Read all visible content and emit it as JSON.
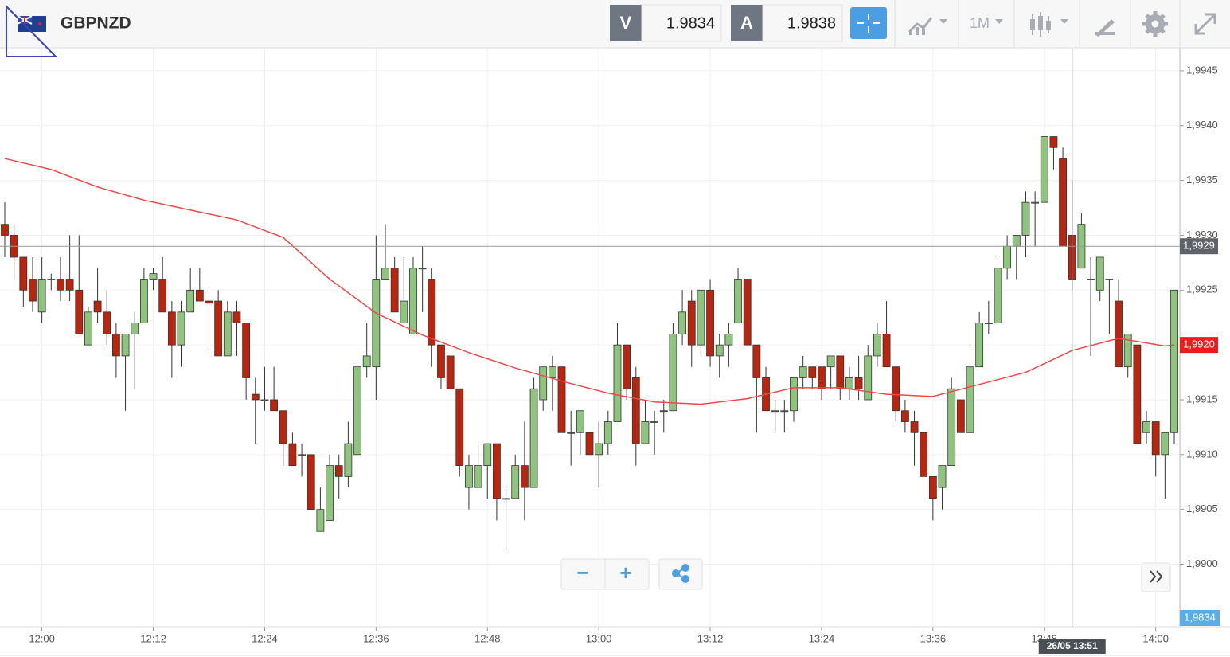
{
  "toolbar": {
    "symbol": "GBPNZD",
    "sell_label": "V",
    "sell_price": 1.9834,
    "buy_label": "A",
    "buy_price": 1.9838,
    "timeframe": "1M"
  },
  "controls": {
    "zoom_out": "−",
    "zoom_in": "+"
  },
  "chart_data": {
    "type": "candlestick",
    "x": [
      "11:56",
      "11:57",
      "11:58",
      "11:59",
      "12:00",
      "12:01",
      "12:02",
      "12:03",
      "12:04",
      "12:05",
      "12:06",
      "12:07",
      "12:08",
      "12:09",
      "12:10",
      "12:11",
      "12:12",
      "12:13",
      "12:14",
      "12:15",
      "12:16",
      "12:17",
      "12:18",
      "12:19",
      "12:20",
      "12:21",
      "12:22",
      "12:23",
      "12:24",
      "12:25",
      "12:26",
      "12:27",
      "12:28",
      "12:29",
      "12:30",
      "12:31",
      "12:32",
      "12:33",
      "12:34",
      "12:35",
      "12:36",
      "12:37",
      "12:38",
      "12:39",
      "12:40",
      "12:41",
      "12:42",
      "12:43",
      "12:44",
      "12:45",
      "12:46",
      "12:47",
      "12:48",
      "12:49",
      "12:50",
      "12:51",
      "12:52",
      "12:53",
      "12:54",
      "12:55",
      "12:56",
      "12:57",
      "12:58",
      "12:59",
      "13:00",
      "13:01",
      "13:02",
      "13:03",
      "13:04",
      "13:05",
      "13:06",
      "13:07",
      "13:08",
      "13:09",
      "13:10",
      "13:11",
      "13:12",
      "13:13",
      "13:14",
      "13:15",
      "13:16",
      "13:17",
      "13:18",
      "13:19",
      "13:20",
      "13:21",
      "13:22",
      "13:23",
      "13:24",
      "13:25",
      "13:26",
      "13:27",
      "13:28",
      "13:29",
      "13:30",
      "13:31",
      "13:32",
      "13:33",
      "13:34",
      "13:35",
      "13:36",
      "13:37",
      "13:38",
      "13:39",
      "13:40",
      "13:41",
      "13:42",
      "13:43",
      "13:44",
      "13:45",
      "13:46",
      "13:47",
      "13:48",
      "13:49",
      "13:50",
      "13:51",
      "13:52",
      "13:53",
      "13:54",
      "13:55",
      "13:56",
      "13:57",
      "13:58",
      "13:59",
      "14:00",
      "14:01",
      "14:02"
    ],
    "open": [
      1.9931,
      1.993,
      1.9928,
      1.9926,
      1.9923,
      1.9926,
      1.9926,
      1.9926,
      1.9925,
      1.992,
      1.9924,
      1.9923,
      1.9921,
      1.9919,
      1.9921,
      1.9922,
      1.9926,
      1.9926,
      1.9923,
      1.992,
      1.9923,
      1.9925,
      1.9924,
      1.9924,
      1.9919,
      1.9923,
      1.9922,
      1.99155,
      1.9915,
      1.9915,
      1.9914,
      1.9911,
      1.991,
      1.991,
      1.9903,
      1.9904,
      1.9909,
      1.9908,
      1.991,
      1.9918,
      1.9918,
      1.9926,
      1.9927,
      1.9922,
      1.9921,
      1.9927,
      1.9926,
      1.992,
      1.9919,
      1.9916,
      1.9907,
      1.9907,
      1.9909,
      1.9911,
      1.9906,
      1.9906,
      1.9909,
      1.9907,
      1.9915,
      1.9917,
      1.9918,
      1.9912,
      1.9912,
      1.9912,
      1.991,
      1.9911,
      1.9913,
      1.992,
      1.9917,
      1.9911,
      1.9913,
      1.9914,
      1.9914,
      1.9921,
      1.9924,
      1.992,
      1.9925,
      1.9919,
      1.992,
      1.9922,
      1.9926,
      1.992,
      1.9917,
      1.9914,
      1.9914,
      1.9914,
      1.9917,
      1.9918,
      1.9918,
      1.9918,
      1.9919,
      1.9916,
      1.9917,
      1.9915,
      1.9919,
      1.9921,
      1.9918,
      1.9914,
      1.9913,
      1.9912,
      1.9908,
      1.9907,
      1.9909,
      1.9915,
      1.9912,
      1.9918,
      1.9922,
      1.9922,
      1.9927,
      1.9929,
      1.993,
      1.9933,
      1.9933,
      1.9939,
      1.9937,
      1.993,
      1.9927,
      1.9926,
      1.9925,
      1.9926,
      1.9924,
      1.9918,
      1.992,
      1.9912,
      1.9913,
      1.991,
      1.9912
    ],
    "high": [
      1.9933,
      1.9931,
      1.9928,
      1.9928,
      1.9928,
      1.99265,
      1.9928,
      1.993,
      1.993,
      1.99235,
      1.9927,
      1.9925,
      1.9922,
      1.9921,
      1.9923,
      1.9927,
      1.9927,
      1.9928,
      1.9924,
      1.9924,
      1.9927,
      1.9927,
      1.9925,
      1.9925,
      1.9924,
      1.9924,
      1.9922,
      1.9917,
      1.9918,
      1.9918,
      1.9914,
      1.9912,
      1.9911,
      1.991,
      1.9907,
      1.991,
      1.991,
      1.9913,
      1.9918,
      1.9922,
      1.993,
      1.9931,
      1.9928,
      1.9928,
      1.9928,
      1.9929,
      1.9927,
      1.992,
      1.9919,
      1.9916,
      1.991,
      1.9911,
      1.9911,
      1.9911,
      1.9907,
      1.991,
      1.9913,
      1.9917,
      1.9918,
      1.9919,
      1.9918,
      1.9914,
      1.9914,
      1.9912,
      1.9913,
      1.9914,
      1.9922,
      1.992,
      1.9918,
      1.9915,
      1.9914,
      1.9915,
      1.9922,
      1.9925,
      1.9925,
      1.9925,
      1.9926,
      1.9921,
      1.9922,
      1.9927,
      1.9926,
      1.992,
      1.9918,
      1.9915,
      1.9915,
      1.9917,
      1.9919,
      1.9918,
      1.9918,
      1.9919,
      1.9919,
      1.9918,
      1.9919,
      1.992,
      1.9922,
      1.9924,
      1.9918,
      1.9915,
      1.9914,
      1.9912,
      1.9908,
      1.9909,
      1.9917,
      1.9915,
      1.992,
      1.9923,
      1.9924,
      1.9928,
      1.993,
      1.993,
      1.9934,
      1.9934,
      1.9939,
      1.9939,
      1.9938,
      1.9935,
      1.9932,
      1.9928,
      1.9928,
      1.9926,
      1.9926,
      1.9921,
      1.992,
      1.9914,
      1.9913,
      1.9912,
      1.9925
    ],
    "low": [
      1.9928,
      1.9926,
      1.99235,
      1.9923,
      1.9922,
      1.9925,
      1.9924,
      1.9924,
      1.9921,
      1.992,
      1.9922,
      1.992,
      1.9917,
      1.9914,
      1.9916,
      1.9922,
      1.9925,
      1.9923,
      1.9917,
      1.9918,
      1.9923,
      1.9924,
      1.992,
      1.9919,
      1.9919,
      1.9919,
      1.9915,
      1.9911,
      1.9914,
      1.9914,
      1.9909,
      1.9909,
      1.9908,
      1.9905,
      1.9903,
      1.9904,
      1.9906,
      1.9907,
      1.991,
      1.9917,
      1.9915,
      1.9926,
      1.9923,
      1.9922,
      1.9921,
      1.9923,
      1.9918,
      1.9916,
      1.9916,
      1.9908,
      1.9905,
      1.9907,
      1.9906,
      1.9904,
      1.9901,
      1.9906,
      1.9904,
      1.9907,
      1.9914,
      1.9914,
      1.9912,
      1.9909,
      1.991,
      1.991,
      1.9907,
      1.991,
      1.9913,
      1.9915,
      1.9909,
      1.9911,
      1.991,
      1.9912,
      1.9914,
      1.992,
      1.9918,
      1.9919,
      1.9918,
      1.9917,
      1.9918,
      1.9922,
      1.992,
      1.9912,
      1.9914,
      1.9912,
      1.9912,
      1.9913,
      1.9916,
      1.9916,
      1.9915,
      1.9916,
      1.9915,
      1.9915,
      1.9915,
      1.9915,
      1.9918,
      1.9918,
      1.9913,
      1.9912,
      1.9909,
      1.9908,
      1.9904,
      1.9905,
      1.9909,
      1.9912,
      1.9912,
      1.9918,
      1.9921,
      1.9922,
      1.9926,
      1.9926,
      1.9928,
      1.9929,
      1.9933,
      1.9936,
      1.9929,
      1.9925,
      1.9927,
      1.9919,
      1.9924,
      1.9921,
      1.9918,
      1.9917,
      1.9911,
      1.9911,
      1.9908,
      1.9906,
      1.9911
    ],
    "close": [
      1.993,
      1.9928,
      1.9925,
      1.9924,
      1.9926,
      1.9926,
      1.9925,
      1.9925,
      1.9921,
      1.9923,
      1.9923,
      1.9921,
      1.9919,
      1.9921,
      1.9922,
      1.9926,
      1.99265,
      1.9923,
      1.992,
      1.9923,
      1.9925,
      1.9924,
      1.99238,
      1.9919,
      1.9923,
      1.9922,
      1.9917,
      1.9915,
      1.9915,
      1.9914,
      1.9911,
      1.9909,
      1.991,
      1.9905,
      1.9905,
      1.9909,
      1.9908,
      1.9911,
      1.9918,
      1.9919,
      1.9926,
      1.9927,
      1.9923,
      1.9924,
      1.9927,
      1.9927,
      1.992,
      1.9917,
      1.9916,
      1.9909,
      1.9909,
      1.9909,
      1.9911,
      1.9906,
      1.9906,
      1.9909,
      1.9907,
      1.9916,
      1.9918,
      1.9918,
      1.9912,
      1.9912,
      1.9914,
      1.991,
      1.9911,
      1.9913,
      1.992,
      1.9916,
      1.9911,
      1.9913,
      1.9913,
      1.9914,
      1.9921,
      1.9923,
      1.992,
      1.9925,
      1.9919,
      1.992,
      1.9921,
      1.9926,
      1.992,
      1.9917,
      1.9914,
      1.9914,
      1.9914,
      1.9917,
      1.9918,
      1.9917,
      1.9916,
      1.9919,
      1.9916,
      1.9917,
      1.9916,
      1.9919,
      1.9921,
      1.9918,
      1.9914,
      1.9913,
      1.9912,
      1.9908,
      1.9906,
      1.9909,
      1.9916,
      1.9912,
      1.9918,
      1.9922,
      1.9922,
      1.9927,
      1.9929,
      1.993,
      1.9933,
      1.9933,
      1.9939,
      1.9938,
      1.9929,
      1.9926,
      1.9931,
      1.9926,
      1.9928,
      1.9926,
      1.9918,
      1.9921,
      1.9911,
      1.9913,
      1.991,
      1.9912,
      1.9925
    ],
    "up_color": "#8fc47e",
    "down_color": "#b8260f",
    "ma": {
      "color": "#f04848",
      "x": [
        "11:56",
        "12:01",
        "12:06",
        "12:11",
        "12:16",
        "12:21",
        "12:26",
        "12:31",
        "12:36",
        "12:41",
        "12:46",
        "12:51",
        "12:56",
        "13:01",
        "13:06",
        "13:11",
        "13:16",
        "13:21",
        "13:26",
        "13:31",
        "13:36",
        "13:41",
        "13:46",
        "13:51",
        "13:56",
        "14:01",
        "14:02"
      ],
      "values": [
        1.9937,
        1.9936,
        1.99344,
        1.99332,
        1.99323,
        1.99314,
        1.99298,
        1.9926,
        1.99229,
        1.99209,
        1.99193,
        1.99179,
        1.99167,
        1.99156,
        1.99148,
        1.99146,
        1.99151,
        1.99161,
        1.99161,
        1.99155,
        1.99153,
        1.99164,
        1.99175,
        1.99195,
        1.99206,
        1.99199,
        1.992
      ],
      "last_label": "1,9920"
    },
    "ylim": [
      1.98943,
      1.99471
    ],
    "yticks": [
      {
        "value": 1.99,
        "label": "1,9900"
      },
      {
        "value": 1.9905,
        "label": "1,9905"
      },
      {
        "value": 1.991,
        "label": "1,9910"
      },
      {
        "value": 1.9915,
        "label": "1,9915"
      },
      {
        "value": 1.992,
        "label": "1,9920"
      },
      {
        "value": 1.9925,
        "label": "1,9925"
      },
      {
        "value": 1.993,
        "label": "1,9930"
      },
      {
        "value": 1.9935,
        "label": "1,9935"
      },
      {
        "value": 1.994,
        "label": "1,9940"
      },
      {
        "value": 1.9945,
        "label": "1,9945"
      }
    ],
    "xticks": [
      "12:00",
      "12:12",
      "12:24",
      "12:36",
      "12:48",
      "13:00",
      "13:12",
      "13:24",
      "13:36",
      "13:48",
      "14:00"
    ],
    "grid": true,
    "crosshair": {
      "value": 1.9929,
      "value_label": "1,9929",
      "time_label": "26/05 13:51"
    },
    "bid_label": "1,9834"
  }
}
